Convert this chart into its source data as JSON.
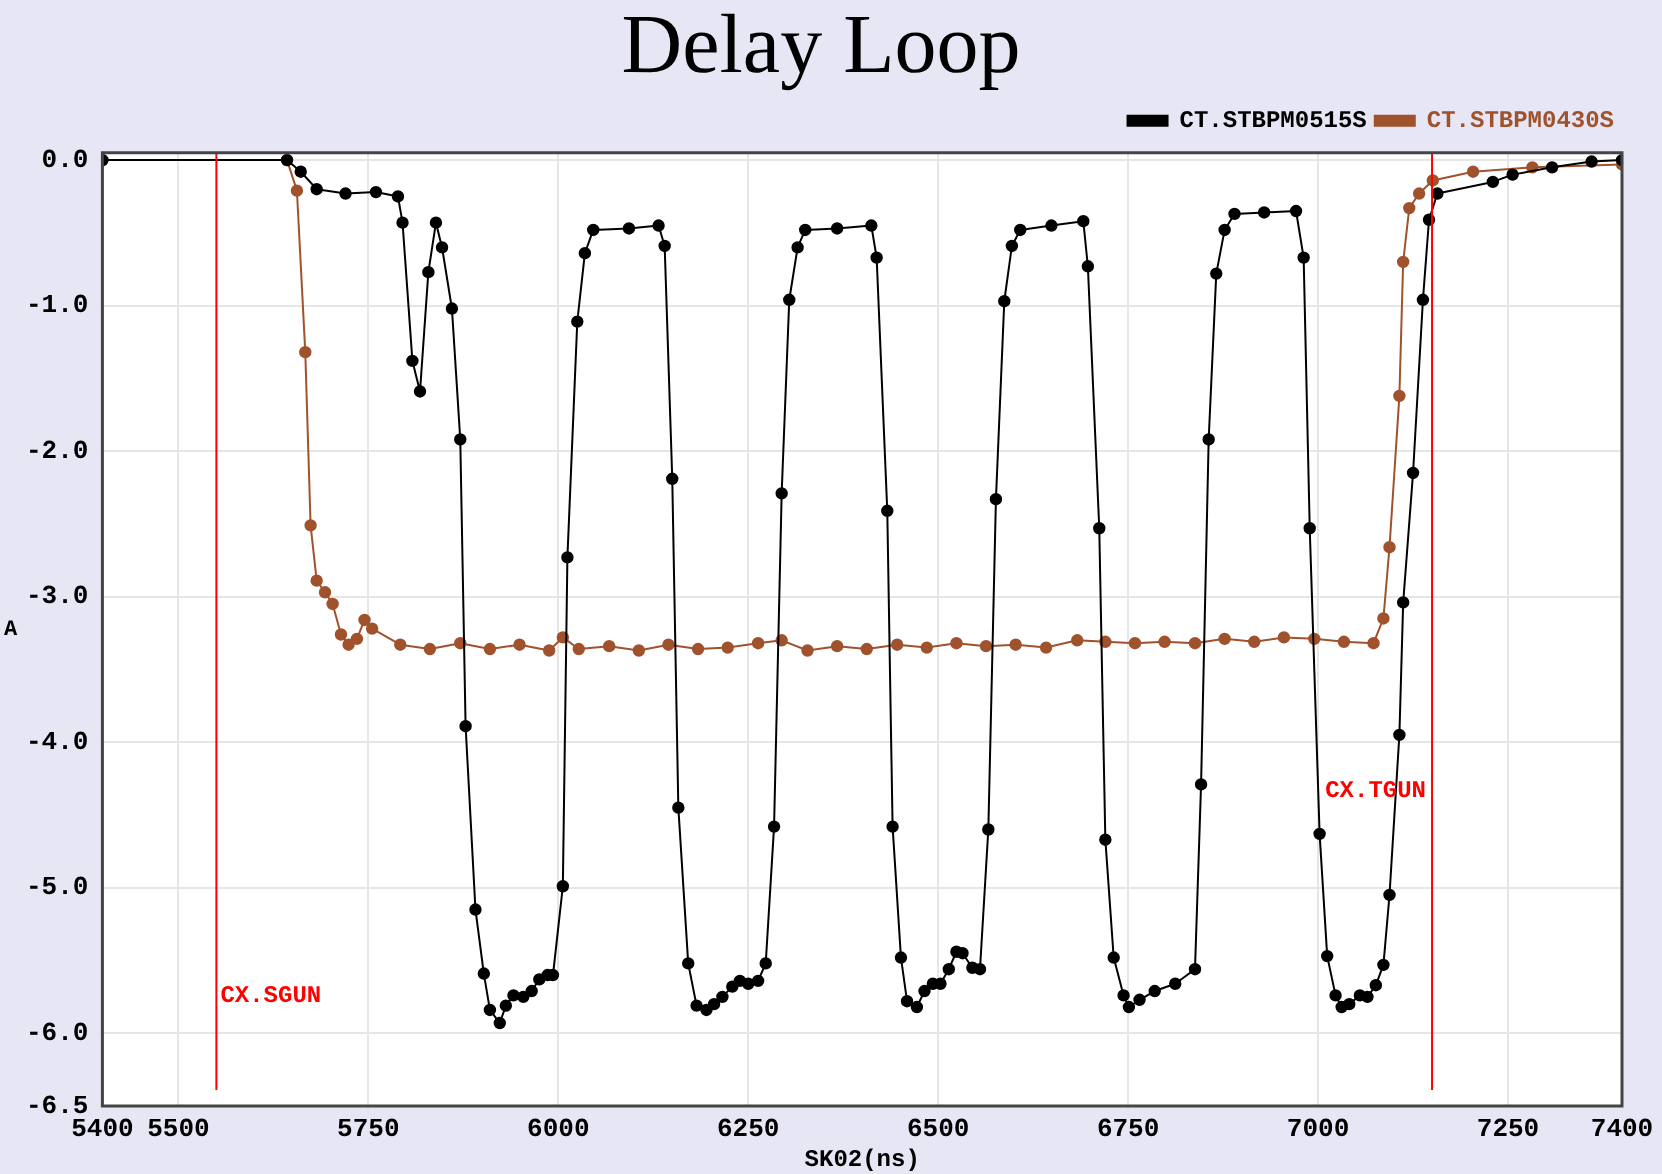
{
  "chart_data": {
    "type": "line",
    "title": "Delay Loop",
    "xlabel": "SK02(ns)",
    "ylabel": "A",
    "xlim": [
      5400,
      7400
    ],
    "xticks": [
      5400,
      5500,
      5750,
      6000,
      6250,
      6500,
      6750,
      7000,
      7250,
      7400
    ],
    "ylim": [
      -6.5,
      0.05
    ],
    "yticks": [
      {
        "value": -6.5,
        "label": "-6.5"
      },
      {
        "value": -6,
        "label": "-6.0"
      },
      {
        "value": -5,
        "label": "-5.0"
      },
      {
        "value": -4,
        "label": "-4.0"
      },
      {
        "value": -3,
        "label": "-3.0"
      },
      {
        "value": -2,
        "label": "-2.0"
      },
      {
        "value": -1,
        "label": "-1.0"
      },
      {
        "value": 0,
        "label": "0.0"
      }
    ],
    "grid": true,
    "legend": "top right",
    "marker": "circle",
    "line_style": "solid",
    "ref_lines": [
      {
        "axis": "x",
        "value": 5550,
        "label": "CX.SGUN",
        "color": "#ff0000"
      },
      {
        "axis": "x",
        "value": 7150,
        "label": "CX.TGUN",
        "color": "#ff0000"
      }
    ],
    "series": [
      {
        "name": "CT.STBPM0515S",
        "color": "#000000",
        "x": [
          5400,
          5643,
          5661,
          5682,
          5720,
          5760,
          5789,
          5795,
          5808,
          5818,
          5829,
          5839,
          5847,
          5860,
          5871,
          5878,
          5891,
          5902,
          5910,
          5923,
          5931,
          5941,
          5954,
          5965,
          5975,
          5986,
          5993,
          6006,
          6012,
          6025,
          6035,
          6046,
          6093,
          6132,
          6140,
          6150,
          6158,
          6171,
          6182,
          6195,
          6205,
          6216,
          6229,
          6239,
          6250,
          6263,
          6273,
          6284,
          6294,
          6304,
          6315,
          6325,
          6367,
          6412,
          6419,
          6433,
          6440,
          6451,
          6459,
          6472,
          6482,
          6493,
          6503,
          6514,
          6524,
          6532,
          6545,
          6555,
          6566,
          6576,
          6587,
          6597,
          6608,
          6649,
          6691,
          6697,
          6712,
          6720,
          6731,
          6744,
          6751,
          6765,
          6785,
          6812,
          6838,
          6846,
          6856,
          6866,
          6877,
          6890,
          6929,
          6971,
          6981,
          6989,
          7002,
          7012,
          7023,
          7031,
          7041,
          7055,
          7065,
          7076,
          7086,
          7094,
          7107,
          7112,
          7125,
          7138,
          7146,
          7157,
          7230,
          7256,
          7308,
          7360,
          7400
        ],
        "values": [
          0,
          0,
          -0.08,
          -0.2,
          -0.23,
          -0.22,
          -0.25,
          -0.43,
          -1.38,
          -1.59,
          -0.77,
          -0.43,
          -0.6,
          -1.02,
          -1.92,
          -3.89,
          -5.15,
          -5.59,
          -5.84,
          -5.93,
          -5.81,
          -5.74,
          -5.75,
          -5.71,
          -5.63,
          -5.6,
          -5.6,
          -4.99,
          -2.73,
          -1.11,
          -0.64,
          -0.48,
          -0.47,
          -0.45,
          -0.59,
          -2.19,
          -4.45,
          -5.52,
          -5.81,
          -5.84,
          -5.8,
          -5.75,
          -5.68,
          -5.64,
          -5.66,
          -5.64,
          -5.52,
          -4.58,
          -2.29,
          -0.96,
          -0.6,
          -0.48,
          -0.47,
          -0.45,
          -0.67,
          -2.41,
          -4.58,
          -5.48,
          -5.78,
          -5.82,
          -5.71,
          -5.66,
          -5.66,
          -5.56,
          -5.44,
          -5.45,
          -5.55,
          -5.56,
          -4.6,
          -2.33,
          -0.97,
          -0.59,
          -0.48,
          -0.45,
          -0.42,
          -0.73,
          -2.53,
          -4.67,
          -5.48,
          -5.74,
          -5.82,
          -5.77,
          -5.71,
          -5.66,
          -5.56,
          -4.29,
          -1.92,
          -0.78,
          -0.48,
          -0.37,
          -0.36,
          -0.35,
          -0.67,
          -2.53,
          -4.63,
          -5.47,
          -5.74,
          -5.82,
          -5.8,
          -5.74,
          -5.75,
          -5.67,
          -5.53,
          -5.05,
          -3.95,
          -3.04,
          -2.15,
          -0.96,
          -0.41,
          -0.23,
          -0.15,
          -0.1,
          -0.05,
          -0.01,
          0
        ]
      },
      {
        "name": "CT.STBPM0430S",
        "color": "#a0522d",
        "x": [
          5400,
          5643,
          5656,
          5667,
          5674,
          5682,
          5693,
          5703,
          5714,
          5724,
          5735,
          5745,
          5755,
          5792,
          5831,
          5871,
          5910,
          5949,
          5988,
          6006,
          6027,
          6067,
          6106,
          6145,
          6184,
          6223,
          6263,
          6294,
          6328,
          6367,
          6406,
          6446,
          6485,
          6524,
          6563,
          6602,
          6642,
          6683,
          6720,
          6759,
          6798,
          6838,
          6877,
          6916,
          6955,
          6995,
          7034,
          7073,
          7086,
          7094,
          7107,
          7112,
          7120,
          7133,
          7151,
          7204,
          7282,
          7400
        ],
        "values": [
          0,
          0,
          -0.21,
          -1.32,
          -2.51,
          -2.89,
          -2.97,
          -3.05,
          -3.26,
          -3.33,
          -3.29,
          -3.16,
          -3.22,
          -3.33,
          -3.36,
          -3.32,
          -3.36,
          -3.33,
          -3.37,
          -3.28,
          -3.36,
          -3.34,
          -3.37,
          -3.33,
          -3.36,
          -3.35,
          -3.32,
          -3.3,
          -3.37,
          -3.34,
          -3.36,
          -3.33,
          -3.35,
          -3.32,
          -3.34,
          -3.33,
          -3.35,
          -3.3,
          -3.31,
          -3.32,
          -3.31,
          -3.32,
          -3.29,
          -3.31,
          -3.28,
          -3.29,
          -3.31,
          -3.32,
          -3.15,
          -2.66,
          -1.62,
          -0.7,
          -0.33,
          -0.23,
          -0.14,
          -0.08,
          -0.05,
          -0.03
        ]
      }
    ]
  }
}
